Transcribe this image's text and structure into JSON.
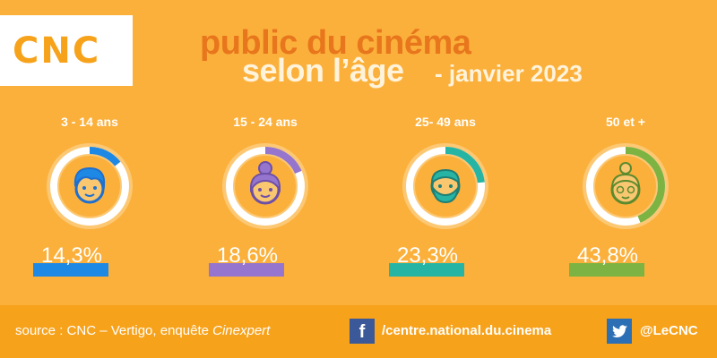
{
  "logo": {
    "text": "CNC"
  },
  "title": {
    "line1": "public du cinéma",
    "line2": "selon l’âge",
    "date": "- janvier 2023"
  },
  "groups": [
    {
      "age": "3 - 14 ans",
      "percent": "14,3%",
      "value": 14.3,
      "color": "#1E88E5",
      "icon": "child-face-icon"
    },
    {
      "age": "15 - 24 ans",
      "percent": "18,6%",
      "value": 18.6,
      "color": "#9575CD",
      "icon": "young-woman-face-icon"
    },
    {
      "age": "25- 49 ans",
      "percent": "23,3%",
      "value": 23.3,
      "color": "#26B5A5",
      "icon": "bearded-man-face-icon"
    },
    {
      "age": "50 et +",
      "percent": "43,8%",
      "value": 43.8,
      "color": "#7CB342",
      "icon": "elderly-woman-face-icon"
    }
  ],
  "footer": {
    "source_prefix": "source : CNC – Vertigo, enquête ",
    "source_italic": "Cinexpert",
    "facebook_glyph": "f",
    "facebook": "/centre.national.du.cinema",
    "twitter": "@LeCNC"
  }
}
